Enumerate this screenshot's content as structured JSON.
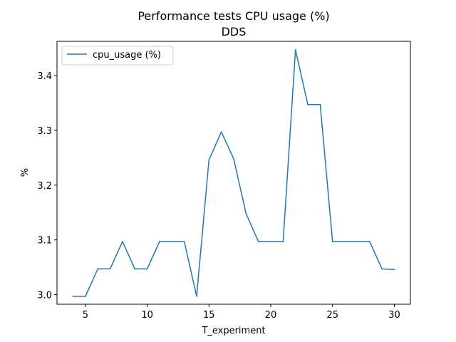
{
  "chart_data": {
    "type": "line",
    "title": "Performance tests CPU usage (%)",
    "subtitle": "DDS",
    "xlabel": "T_experiment",
    "ylabel": "%",
    "xlim": [
      2.7,
      31.3
    ],
    "ylim": [
      2.9825,
      3.4625
    ],
    "xticks": [
      5,
      10,
      15,
      20,
      25,
      30
    ],
    "yticks": [
      3.0,
      3.1,
      3.2,
      3.3,
      3.4
    ],
    "xtick_labels": [
      "5",
      "10",
      "15",
      "20",
      "25",
      "30"
    ],
    "ytick_labels": [
      "3.0",
      "3.1",
      "3.2",
      "3.3",
      "3.4"
    ],
    "grid": false,
    "legend_position": "upper-left",
    "series": [
      {
        "name": "cpu_usage (%)",
        "color": "#1f77b4",
        "x": [
          4,
          5,
          6,
          7,
          8,
          9,
          10,
          11,
          12,
          13,
          14,
          15,
          16,
          17,
          18,
          19,
          20,
          21,
          22,
          23,
          24,
          25,
          26,
          27,
          28,
          29,
          30
        ],
        "y": [
          2.997,
          2.997,
          3.047,
          3.047,
          3.097,
          3.047,
          3.047,
          3.097,
          3.097,
          3.097,
          2.997,
          3.246,
          3.297,
          3.248,
          3.148,
          3.097,
          3.097,
          3.097,
          3.447,
          3.347,
          3.347,
          3.097,
          3.097,
          3.097,
          3.097,
          3.047,
          3.046
        ]
      }
    ]
  }
}
